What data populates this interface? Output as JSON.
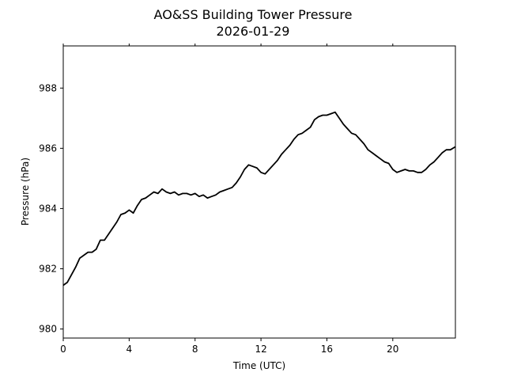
{
  "chart_data": {
    "type": "line",
    "title": "AO&SS Building Tower Pressure",
    "subtitle": "2026-01-29",
    "xlabel": "Time (UTC)",
    "ylabel": "Pressure (hPa)",
    "xlim": [
      0,
      23.8
    ],
    "ylim": [
      979.7,
      989.4
    ],
    "x_ticks": [
      0,
      4,
      8,
      12,
      16,
      20
    ],
    "y_ticks": [
      980,
      982,
      984,
      986,
      988
    ],
    "grid": false,
    "line_color": "#000000",
    "series": [
      {
        "x": [
          0,
          0.25,
          0.5,
          0.75,
          1.0,
          1.25,
          1.5,
          1.75,
          2.0,
          2.25,
          2.5,
          2.75,
          3.0,
          3.25,
          3.5,
          3.75,
          4.0,
          4.25,
          4.5,
          4.75,
          5.0,
          5.25,
          5.5,
          5.75,
          6.0,
          6.25,
          6.5,
          6.75,
          7.0,
          7.25,
          7.5,
          7.75,
          8.0,
          8.25,
          8.5,
          8.75,
          9.0,
          9.25,
          9.5,
          9.75,
          10.0,
          10.25,
          10.5,
          10.75,
          11.0,
          11.25,
          11.5,
          11.75,
          12.0,
          12.25,
          12.5,
          12.75,
          13.0,
          13.25,
          13.5,
          13.75,
          14.0,
          14.25,
          14.5,
          14.75,
          15.0,
          15.25,
          15.5,
          15.75,
          16.0,
          16.25,
          16.5,
          16.75,
          17.0,
          17.25,
          17.5,
          17.75,
          18.0,
          18.25,
          18.5,
          18.75,
          19.0,
          19.25,
          19.5,
          19.75,
          20.0,
          20.25,
          20.5,
          20.75,
          21.0,
          21.25,
          21.5,
          21.75,
          22.0,
          22.25,
          22.5,
          22.75,
          23.0,
          23.25,
          23.5,
          23.8
        ],
        "values": [
          981.45,
          981.55,
          981.8,
          982.05,
          982.35,
          982.45,
          982.55,
          982.55,
          982.65,
          982.95,
          982.95,
          983.15,
          983.35,
          983.55,
          983.8,
          983.85,
          983.95,
          983.85,
          984.1,
          984.3,
          984.35,
          984.45,
          984.55,
          984.5,
          984.65,
          984.55,
          984.5,
          984.55,
          984.45,
          984.5,
          984.5,
          984.45,
          984.5,
          984.4,
          984.45,
          984.35,
          984.4,
          984.45,
          984.55,
          984.6,
          984.65,
          984.7,
          984.85,
          985.05,
          985.3,
          985.45,
          985.4,
          985.35,
          985.2,
          985.15,
          985.3,
          985.45,
          985.6,
          985.8,
          985.95,
          986.1,
          986.3,
          986.45,
          986.5,
          986.6,
          986.7,
          986.95,
          987.05,
          987.1,
          987.1,
          987.15,
          987.2,
          987.0,
          986.8,
          986.65,
          986.5,
          986.45,
          986.3,
          986.15,
          985.95,
          985.85,
          985.75,
          985.65,
          985.55,
          985.5,
          985.3,
          985.2,
          985.25,
          985.3,
          985.25,
          985.25,
          985.2,
          985.2,
          985.3,
          985.45,
          985.55,
          985.7,
          985.85,
          985.95,
          985.95,
          986.05
        ]
      }
    ]
  }
}
